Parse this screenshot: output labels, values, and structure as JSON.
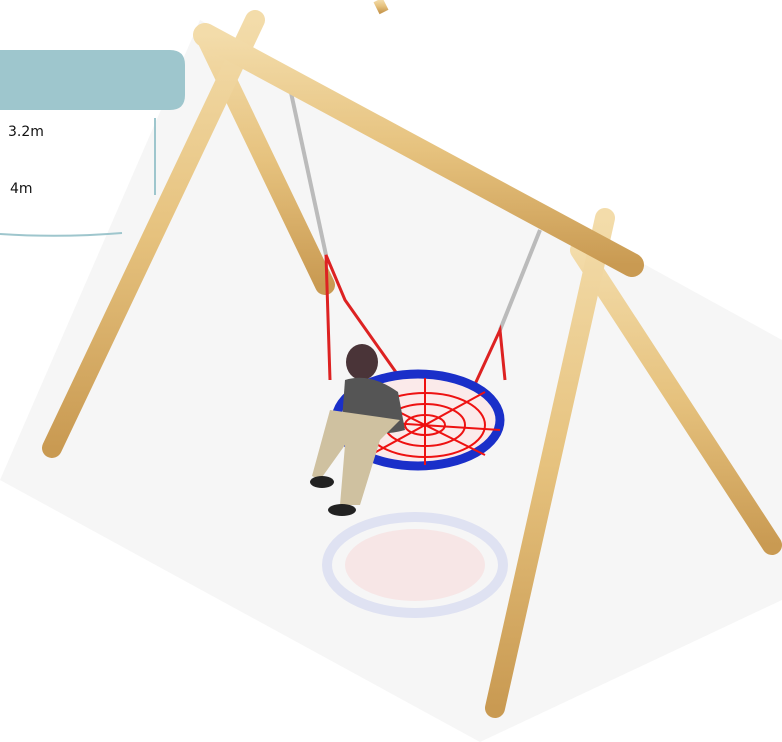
{
  "specs": {
    "items": [
      "3.2m",
      "4m"
    ]
  }
}
